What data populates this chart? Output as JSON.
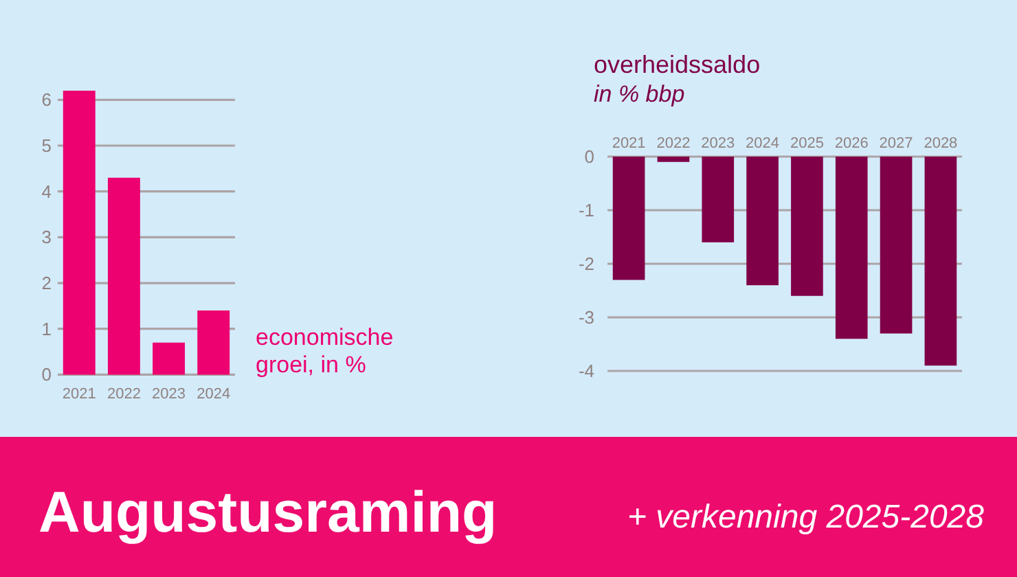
{
  "chart_data": [
    {
      "type": "bar",
      "annotations": [
        "economische groei, in %"
      ],
      "categories": [
        "2021",
        "2022",
        "2023",
        "2024"
      ],
      "values": [
        6.2,
        4.3,
        0.7,
        1.4
      ],
      "color": "#ed0070",
      "ylim": [
        0,
        6.2
      ],
      "yticks": [
        0,
        1,
        2,
        3,
        4,
        5,
        6
      ],
      "grid": "y"
    },
    {
      "type": "bar",
      "title": "overheidssaldo",
      "subtitle": "in % bbp",
      "categories": [
        "2021",
        "2022",
        "2023",
        "2024",
        "2025",
        "2026",
        "2027",
        "2028"
      ],
      "values": [
        -2.3,
        -0.1,
        -1.6,
        -2.4,
        -2.6,
        -3.4,
        -3.3,
        -3.9
      ],
      "color": "#800048",
      "ylim": [
        -4,
        0
      ],
      "yticks": [
        0,
        -1,
        -2,
        -3,
        -4
      ],
      "grid": "y"
    },
    {
      "type": "other",
      "title": "Augustusraming",
      "subtitle": "+ verkenning 2025-2028",
      "color": "#ed0b6e"
    }
  ]
}
